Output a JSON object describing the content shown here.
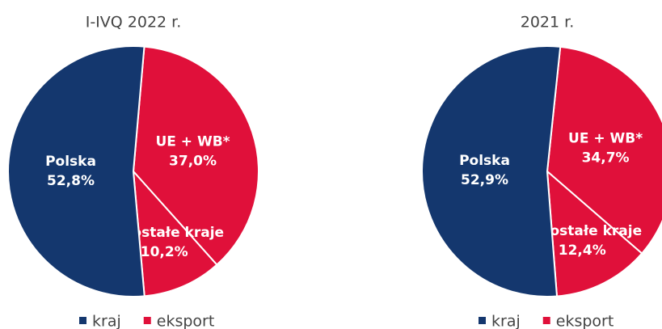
{
  "chart_data": [
    {
      "type": "pie",
      "title": "I-IVQ 2022 r.",
      "categories": [
        "UE + WB*",
        "Pozostałe kraje",
        "Polska"
      ],
      "values": [
        37.0,
        10.2,
        52.8
      ],
      "value_labels": [
        "37,0%",
        "10,2%",
        "52,8%"
      ],
      "colors": [
        "#e0103a",
        "#e0103a",
        "#14376e"
      ],
      "legend": [
        {
          "name": "kraj",
          "color": "#14376e"
        },
        {
          "name": "eksport",
          "color": "#e0103a"
        }
      ]
    },
    {
      "type": "pie",
      "title": "2021 r.",
      "categories": [
        "UE + WB*",
        "Pozostałe kraje",
        "Polska"
      ],
      "values": [
        34.7,
        12.4,
        52.9
      ],
      "value_labels": [
        "34,7%",
        "12,4%",
        "52,9%"
      ],
      "colors": [
        "#e0103a",
        "#e0103a",
        "#14376e"
      ],
      "legend": [
        {
          "name": "kraj",
          "color": "#14376e"
        },
        {
          "name": "eksport",
          "color": "#e0103a"
        }
      ]
    }
  ]
}
